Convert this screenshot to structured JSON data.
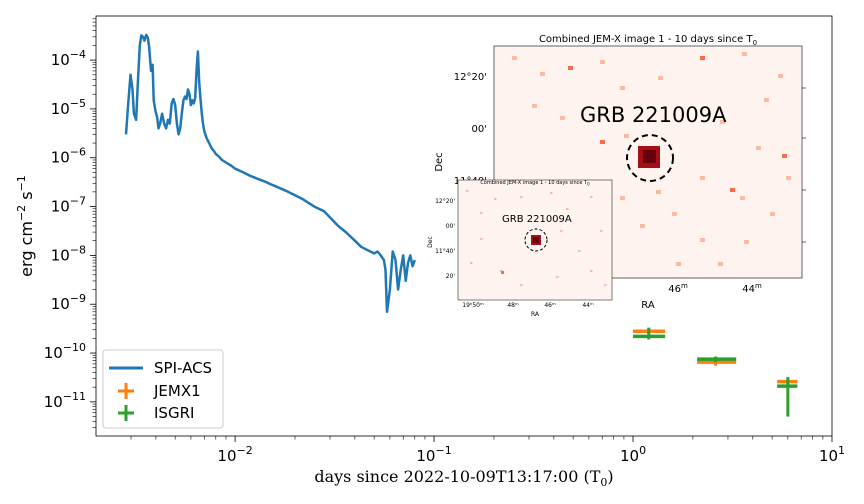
{
  "chart_data": {
    "type": "line",
    "xscale": "log",
    "yscale": "log",
    "xlim": [
      0.002,
      10
    ],
    "ylim": [
      2e-12,
      0.0008
    ],
    "xlabel": "days since 2022-10-09T13:17:00 (T$_0$)",
    "xlabel_text": "days since 2022-10-09T13:17:00 (T",
    "xlabel_sub": "0",
    "xlabel_close": ")",
    "ylabel_text": "erg cm",
    "ylabel_exp1": "−2",
    "ylabel_mid": " s",
    "ylabel_exp2": "−1",
    "x_ticks": [
      {
        "value": 0.01,
        "base": "10",
        "exp": "−2"
      },
      {
        "value": 0.1,
        "base": "10",
        "exp": "−1"
      },
      {
        "value": 1,
        "base": "10",
        "exp": "0"
      },
      {
        "value": 10,
        "base": "10",
        "exp": "1"
      }
    ],
    "y_ticks": [
      {
        "value": 1e-11,
        "base": "10",
        "exp": "−11"
      },
      {
        "value": 1e-10,
        "base": "10",
        "exp": "−10"
      },
      {
        "value": 1e-09,
        "base": "10",
        "exp": "−9"
      },
      {
        "value": 1e-08,
        "base": "10",
        "exp": "−8"
      },
      {
        "value": 1e-07,
        "base": "10",
        "exp": "−7"
      },
      {
        "value": 1e-06,
        "base": "10",
        "exp": "−6"
      },
      {
        "value": 1e-05,
        "base": "10",
        "exp": "−5"
      },
      {
        "value": 0.0001,
        "base": "10",
        "exp": "−4"
      }
    ],
    "series": [
      {
        "name": "SPI-ACS",
        "type": "line",
        "color": "#1f77b4",
        "x": [
          0.00283,
          0.0029,
          0.00298,
          0.00305,
          0.0031,
          0.00318,
          0.00325,
          0.00332,
          0.00338,
          0.00345,
          0.0035,
          0.00358,
          0.00365,
          0.0037,
          0.00378,
          0.00385,
          0.0039,
          0.00398,
          0.00405,
          0.00412,
          0.0042,
          0.0043,
          0.0044,
          0.0045,
          0.0046,
          0.0047,
          0.0048,
          0.0049,
          0.005,
          0.0051,
          0.0052,
          0.0053,
          0.0054,
          0.0055,
          0.0056,
          0.0057,
          0.0058,
          0.0059,
          0.006,
          0.0061,
          0.0062,
          0.0063,
          0.0064,
          0.0065,
          0.0066,
          0.0067,
          0.0068,
          0.0069,
          0.007,
          0.0072,
          0.0074,
          0.0076,
          0.0078,
          0.008,
          0.0083,
          0.0086,
          0.009,
          0.0095,
          0.01,
          0.011,
          0.012,
          0.013,
          0.014,
          0.015,
          0.016,
          0.018,
          0.02,
          0.022,
          0.025,
          0.028,
          0.03,
          0.033,
          0.036,
          0.04,
          0.043,
          0.046,
          0.05,
          0.052,
          0.054,
          0.056,
          0.057,
          0.058,
          0.06,
          0.062,
          0.064,
          0.066,
          0.068,
          0.07,
          0.072,
          0.074,
          0.076,
          0.078,
          0.08
        ],
        "y": [
          3e-06,
          1.2e-05,
          5e-05,
          2.5e-05,
          8e-06,
          6e-06,
          4e-05,
          0.0002,
          0.00032,
          0.0003,
          0.00025,
          0.00033,
          0.00028,
          0.00018,
          6e-05,
          8e-05,
          1.5e-05,
          9e-06,
          7e-06,
          4e-06,
          5e-06,
          8e-06,
          5e-06,
          4e-06,
          6e-06,
          5e-06,
          1.3e-05,
          1.6e-05,
          1.2e-05,
          5e-06,
          3e-06,
          4e-06,
          8e-06,
          1.5e-05,
          1.8e-05,
          1.6e-05,
          2.5e-05,
          2e-05,
          1.2e-05,
          1.5e-05,
          1.3e-05,
          1.7e-05,
          6e-05,
          0.00015,
          3.5e-05,
          1.6e-05,
          8e-06,
          5e-06,
          3.5e-06,
          2.5e-06,
          2e-06,
          1.6e-06,
          1.4e-06,
          1.2e-06,
          1.05e-06,
          9e-07,
          8e-07,
          7e-07,
          6e-07,
          5e-07,
          4.2e-07,
          3.7e-07,
          3.3e-07,
          2.9e-07,
          2.6e-07,
          2.1e-07,
          1.7e-07,
          1.4e-07,
          1e-07,
          8e-08,
          6e-08,
          4e-08,
          3e-08,
          2e-08,
          1.5e-08,
          1.3e-08,
          1.1e-08,
          1.2e-08,
          1e-08,
          8e-09,
          5e-09,
          7e-10,
          2e-09,
          1.2e-08,
          8e-09,
          2e-09,
          5e-09,
          1e-08,
          3e-09,
          7e-09,
          1e-08,
          6e-09,
          8e-09
        ]
      },
      {
        "name": "JEMX1",
        "type": "errorbar",
        "color": "#ff7f0e",
        "points": [
          {
            "x": 1.2,
            "y": 2.8e-10,
            "xerr": [
              1.0,
              1.45
            ],
            "yerr": [
              2.4e-10,
              3.3e-10
            ]
          },
          {
            "x": 2.6,
            "y": 6.5e-11,
            "xerr": [
              2.1,
              3.3
            ],
            "yerr": [
              5.5e-11,
              7.8e-11
            ]
          },
          {
            "x": 6.0,
            "y": 2.6e-11,
            "xerr": [
              5.3,
              6.7
            ],
            "yerr": [
              2.1e-11,
              3.2e-11
            ]
          }
        ]
      },
      {
        "name": "ISGRI",
        "type": "errorbar",
        "color": "#2ca02c",
        "points": [
          {
            "x": 1.2,
            "y": 2.2e-10,
            "xerr": [
              1.0,
              1.45
            ],
            "yerr": [
              1.9e-10,
              3.3e-10
            ]
          },
          {
            "x": 2.6,
            "y": 7.5e-11,
            "xerr": [
              2.1,
              3.3
            ],
            "yerr": [
              6.5e-11,
              8.5e-11
            ]
          },
          {
            "x": 6.0,
            "y": 2.1e-11,
            "xerr": [
              5.3,
              6.7
            ],
            "yerr": [
              5e-12,
              3.2e-11
            ]
          }
        ]
      }
    ],
    "legend": {
      "placement": "lower-left",
      "entries": [
        {
          "label": "SPI-ACS",
          "color": "#1f77b4",
          "marker": "line"
        },
        {
          "label": "JEMX1",
          "color": "#ff7f0e",
          "marker": "plus"
        },
        {
          "label": "ISGRI",
          "color": "#2ca02c",
          "marker": "plus"
        }
      ]
    }
  },
  "inset_large": {
    "title": "Combined JEM-X image 1 - 10 days since T",
    "title_sub": "0",
    "source_label": "GRB 221009A",
    "y_label": "Dec",
    "x_label": "RA",
    "y_ticks": [
      "12°20'",
      "00'",
      "11°40'"
    ],
    "x_ticks": [
      {
        "base": "46",
        "sup": "m"
      },
      {
        "base": "44",
        "sup": "m"
      }
    ],
    "colors": {
      "background": "#fff4f0",
      "pixel_light": "#fcbba1",
      "pixel_mid": "#fb6a4a",
      "pixel_dark": "#a50f15",
      "pixel_core": "#67000d"
    }
  },
  "inset_small": {
    "title": "Combined JEM-X image 1 - 10 days since T",
    "title_sub": "0",
    "source_label": "GRB 221009A",
    "y_label": "Dec",
    "x_label": "RA",
    "y_ticks": [
      "12°20'",
      "00'",
      "11°40'",
      "20'"
    ],
    "x_ticks": [
      "19ʰ50ᵐ",
      "48ᵐ",
      "46ᵐ",
      "44ᵐ"
    ]
  }
}
